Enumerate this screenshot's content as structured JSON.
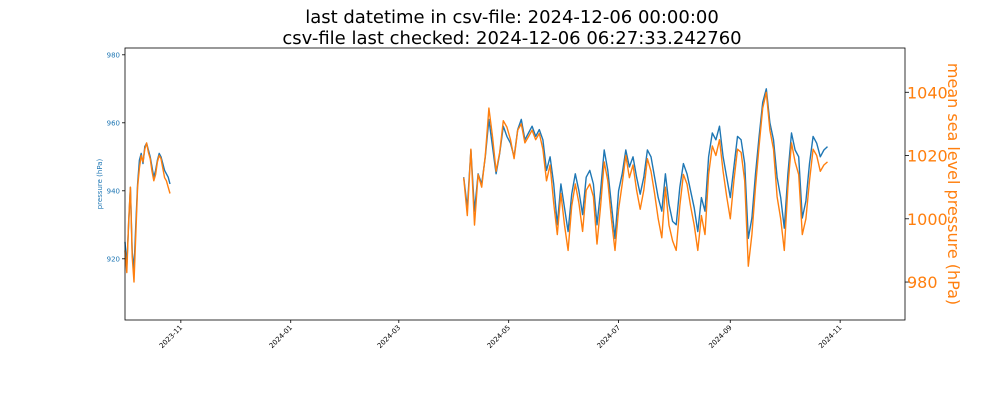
{
  "figure": {
    "title_line_1": "last datetime in csv-file: 2024-12-06 00:00:00",
    "title_line_2": "csv-file last checked: 2024-12-06 06:27:33.242760"
  },
  "colors": {
    "pressure": "#1f77b4",
    "msl": "#ff7f0e",
    "axes": "#000000",
    "background": "#ffffff"
  },
  "chart_data": {
    "type": "line",
    "xlabel": "",
    "x_ticks": [
      "2023-11",
      "2024-01",
      "2024-03",
      "2024-05",
      "2024-07",
      "2024-09",
      "2024-11"
    ],
    "x_range": [
      "2023-10-01",
      "2024-12-07"
    ],
    "grid": false,
    "legend": "none",
    "left_axis": {
      "label": "pressure (hPa)",
      "ticks": [
        920,
        940,
        960,
        980
      ],
      "range": [
        902,
        982
      ],
      "color": "#1f77b4"
    },
    "right_axis": {
      "label": "mean sea level pressure (hPa)",
      "ticks": [
        980,
        1000,
        1020,
        1040
      ],
      "range": [
        968,
        1054
      ],
      "color": "#ff7f0e"
    },
    "series": [
      {
        "axis": "left",
        "color": "#1f77b4",
        "segments": [
          {
            "x": [
              "2023-10-01",
              "2023-10-02",
              "2023-10-03",
              "2023-10-04",
              "2023-10-05",
              "2023-10-06",
              "2023-10-07",
              "2023-10-08",
              "2023-10-09",
              "2023-10-10",
              "2023-10-11",
              "2023-10-12",
              "2023-10-13",
              "2023-10-14",
              "2023-10-15",
              "2023-10-16",
              "2023-10-17",
              "2023-10-18",
              "2023-10-19",
              "2023-10-20",
              "2023-10-21",
              "2023-10-22",
              "2023-10-23",
              "2023-10-24",
              "2023-10-25",
              "2023-10-26"
            ],
            "y": [
              925,
              918,
              930,
              941,
              922,
              917,
              930,
              942,
              949,
              951,
              948,
              953,
              954,
              952,
              950,
              947,
              944,
              946,
              949,
              951,
              950,
              948,
              946,
              945,
              944,
              942
            ]
          },
          {
            "x": [
              "2024-04-06",
              "2024-04-08",
              "2024-04-10",
              "2024-04-12",
              "2024-04-14",
              "2024-04-16",
              "2024-04-18",
              "2024-04-20",
              "2024-04-22",
              "2024-04-24",
              "2024-04-26",
              "2024-04-28",
              "2024-04-30",
              "2024-05-02",
              "2024-05-04",
              "2024-05-06",
              "2024-05-08",
              "2024-05-10",
              "2024-05-12",
              "2024-05-14",
              "2024-05-16",
              "2024-05-18",
              "2024-05-20",
              "2024-05-22",
              "2024-05-24",
              "2024-05-26",
              "2024-05-28",
              "2024-05-30",
              "2024-06-01",
              "2024-06-03",
              "2024-06-05",
              "2024-06-07",
              "2024-06-09",
              "2024-06-11",
              "2024-06-13",
              "2024-06-15",
              "2024-06-17",
              "2024-06-19",
              "2024-06-21",
              "2024-06-23",
              "2024-06-25",
              "2024-06-27",
              "2024-06-29",
              "2024-07-01",
              "2024-07-03",
              "2024-07-05",
              "2024-07-07",
              "2024-07-09",
              "2024-07-11",
              "2024-07-13",
              "2024-07-15",
              "2024-07-17",
              "2024-07-19",
              "2024-07-21",
              "2024-07-23",
              "2024-07-25",
              "2024-07-27",
              "2024-07-29",
              "2024-07-31",
              "2024-08-02",
              "2024-08-04",
              "2024-08-06",
              "2024-08-08",
              "2024-08-10",
              "2024-08-12",
              "2024-08-14",
              "2024-08-16",
              "2024-08-18",
              "2024-08-20",
              "2024-08-22",
              "2024-08-24",
              "2024-08-26",
              "2024-08-28",
              "2024-08-30",
              "2024-09-01",
              "2024-09-03",
              "2024-09-05",
              "2024-09-07",
              "2024-09-09",
              "2024-09-11",
              "2024-09-13",
              "2024-09-15",
              "2024-09-17",
              "2024-09-19",
              "2024-09-21",
              "2024-09-23",
              "2024-09-25",
              "2024-09-27",
              "2024-09-29",
              "2024-10-01",
              "2024-10-03",
              "2024-10-05",
              "2024-10-07",
              "2024-10-09",
              "2024-10-11",
              "2024-10-13",
              "2024-10-15",
              "2024-10-17",
              "2024-10-19",
              "2024-10-21",
              "2024-10-23",
              "2024-10-25"
            ],
            "y": [
              944,
              935,
              952,
              934,
              945,
              942,
              950,
              961,
              953,
              945,
              951,
              959,
              956,
              954,
              950,
              958,
              961,
              955,
              957,
              959,
              956,
              958,
              955,
              946,
              950,
              942,
              930,
              942,
              935,
              928,
              939,
              945,
              940,
              933,
              944,
              946,
              942,
              930,
              940,
              952,
              946,
              936,
              926,
              940,
              945,
              952,
              947,
              950,
              944,
              939,
              944,
              952,
              950,
              944,
              938,
              934,
              945,
              936,
              931,
              930,
              941,
              948,
              945,
              940,
              935,
              928,
              938,
              934,
              950,
              957,
              955,
              959,
              950,
              944,
              938,
              947,
              956,
              955,
              948,
              926,
              932,
              945,
              956,
              966,
              970,
              960,
              955,
              944,
              938,
              929,
              945,
              957,
              952,
              950,
              932,
              937,
              948,
              956,
              954,
              950,
              952,
              953
            ]
          }
        ]
      },
      {
        "axis": "right",
        "color": "#ff7f0e",
        "segments": [
          {
            "x": [
              "2023-10-01",
              "2023-10-02",
              "2023-10-03",
              "2023-10-04",
              "2023-10-05",
              "2023-10-06",
              "2023-10-07",
              "2023-10-08",
              "2023-10-09",
              "2023-10-10",
              "2023-10-11",
              "2023-10-12",
              "2023-10-13",
              "2023-10-14",
              "2023-10-15",
              "2023-10-16",
              "2023-10-17",
              "2023-10-18",
              "2023-10-19",
              "2023-10-20",
              "2023-10-21",
              "2023-10-22",
              "2023-10-23",
              "2023-10-24",
              "2023-10-25",
              "2023-10-26"
            ],
            "y": [
              990,
              983,
              999,
              1010,
              988,
              980,
              995,
              1010,
              1016,
              1020,
              1018,
              1022,
              1024,
              1021,
              1019,
              1015,
              1012,
              1014,
              1018,
              1020,
              1019,
              1016,
              1013,
              1012,
              1010,
              1008
            ]
          },
          {
            "x": [
              "2024-04-06",
              "2024-04-08",
              "2024-04-10",
              "2024-04-12",
              "2024-04-14",
              "2024-04-16",
              "2024-04-18",
              "2024-04-20",
              "2024-04-22",
              "2024-04-24",
              "2024-04-26",
              "2024-04-28",
              "2024-04-30",
              "2024-05-02",
              "2024-05-04",
              "2024-05-06",
              "2024-05-08",
              "2024-05-10",
              "2024-05-12",
              "2024-05-14",
              "2024-05-16",
              "2024-05-18",
              "2024-05-20",
              "2024-05-22",
              "2024-05-24",
              "2024-05-26",
              "2024-05-28",
              "2024-05-30",
              "2024-06-01",
              "2024-06-03",
              "2024-06-05",
              "2024-06-07",
              "2024-06-09",
              "2024-06-11",
              "2024-06-13",
              "2024-06-15",
              "2024-06-17",
              "2024-06-19",
              "2024-06-21",
              "2024-06-23",
              "2024-06-25",
              "2024-06-27",
              "2024-06-29",
              "2024-07-01",
              "2024-07-03",
              "2024-07-05",
              "2024-07-07",
              "2024-07-09",
              "2024-07-11",
              "2024-07-13",
              "2024-07-15",
              "2024-07-17",
              "2024-07-19",
              "2024-07-21",
              "2024-07-23",
              "2024-07-25",
              "2024-07-27",
              "2024-07-29",
              "2024-07-31",
              "2024-08-02",
              "2024-08-04",
              "2024-08-06",
              "2024-08-08",
              "2024-08-10",
              "2024-08-12",
              "2024-08-14",
              "2024-08-16",
              "2024-08-18",
              "2024-08-20",
              "2024-08-22",
              "2024-08-24",
              "2024-08-26",
              "2024-08-28",
              "2024-08-30",
              "2024-09-01",
              "2024-09-03",
              "2024-09-05",
              "2024-09-07",
              "2024-09-09",
              "2024-09-11",
              "2024-09-13",
              "2024-09-15",
              "2024-09-17",
              "2024-09-19",
              "2024-09-21",
              "2024-09-23",
              "2024-09-25",
              "2024-09-27",
              "2024-09-29",
              "2024-10-01",
              "2024-10-03",
              "2024-10-05",
              "2024-10-07",
              "2024-10-09",
              "2024-10-11",
              "2024-10-13",
              "2024-10-15",
              "2024-10-17",
              "2024-10-19",
              "2024-10-21",
              "2024-10-23",
              "2024-10-25"
            ],
            "y": [
              1013,
              1001,
              1022,
              998,
              1014,
              1010,
              1020,
              1035,
              1026,
              1015,
              1021,
              1031,
              1029,
              1025,
              1019,
              1028,
              1030,
              1024,
              1026,
              1028,
              1025,
              1027,
              1022,
              1012,
              1017,
              1005,
              995,
              1008,
              998,
              990,
              1004,
              1011,
              1005,
              996,
              1009,
              1011,
              1007,
              992,
              1004,
              1018,
              1012,
              1000,
              990,
              1003,
              1011,
              1020,
              1013,
              1017,
              1009,
              1003,
              1009,
              1019,
              1015,
              1008,
              1000,
              994,
              1010,
              998,
              993,
              990,
              1004,
              1014,
              1011,
              1004,
              998,
              990,
              1001,
              995,
              1014,
              1023,
              1020,
              1025,
              1015,
              1007,
              1000,
              1012,
              1022,
              1021,
              1012,
              985,
              995,
              1010,
              1023,
              1035,
              1040,
              1028,
              1022,
              1007,
              1000,
              990,
              1010,
              1024,
              1018,
              1014,
              995,
              1000,
              1012,
              1022,
              1020,
              1015,
              1017,
              1018
            ]
          }
        ]
      }
    ]
  }
}
